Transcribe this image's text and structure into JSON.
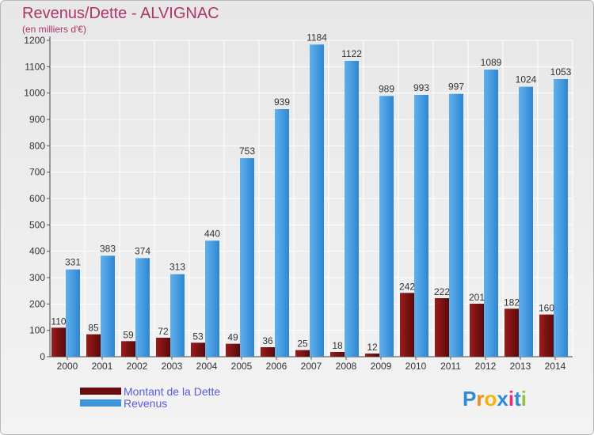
{
  "header": {
    "title": "Revenus/Dette - ALVIGNAC",
    "subtitle": "(en milliers d'€)"
  },
  "chart_data": {
    "type": "bar",
    "categories": [
      "2000",
      "2001",
      "2002",
      "2003",
      "2004",
      "2005",
      "2006",
      "2007",
      "2008",
      "2009",
      "2010",
      "2011",
      "2012",
      "2013",
      "2014"
    ],
    "series": [
      {
        "name": "Montant de la Dette",
        "color": "#7a1010",
        "values": [
          110,
          85,
          59,
          72,
          53,
          49,
          36,
          25,
          18,
          12,
          242,
          222,
          201,
          182,
          160
        ]
      },
      {
        "name": "Revenus",
        "color": "#3d95dc",
        "values": [
          331,
          383,
          374,
          313,
          440,
          753,
          939,
          1184,
          1122,
          989,
          993,
          997,
          1089,
          1024,
          1053
        ]
      }
    ],
    "yticks": [
      0,
      100,
      200,
      300,
      400,
      500,
      600,
      700,
      800,
      900,
      1000,
      1100,
      1200
    ],
    "ylim": [
      0,
      1200
    ],
    "grid": true,
    "legend_position": "bottom-left"
  },
  "legend": {
    "items": [
      {
        "label": "Montant de la Dette",
        "color": "#6b0c0c"
      },
      {
        "label": "Revenus",
        "color": "#3d95dc"
      }
    ]
  },
  "logo": {
    "letters": [
      "P",
      "r",
      "o",
      "x",
      "i",
      "t",
      "i"
    ],
    "colors": [
      "#2e8bd6",
      "#f08a1c",
      "#f2b705",
      "#2e8bd6",
      "#ee2b6c",
      "#2e8bd6",
      "#8bc53f"
    ]
  }
}
